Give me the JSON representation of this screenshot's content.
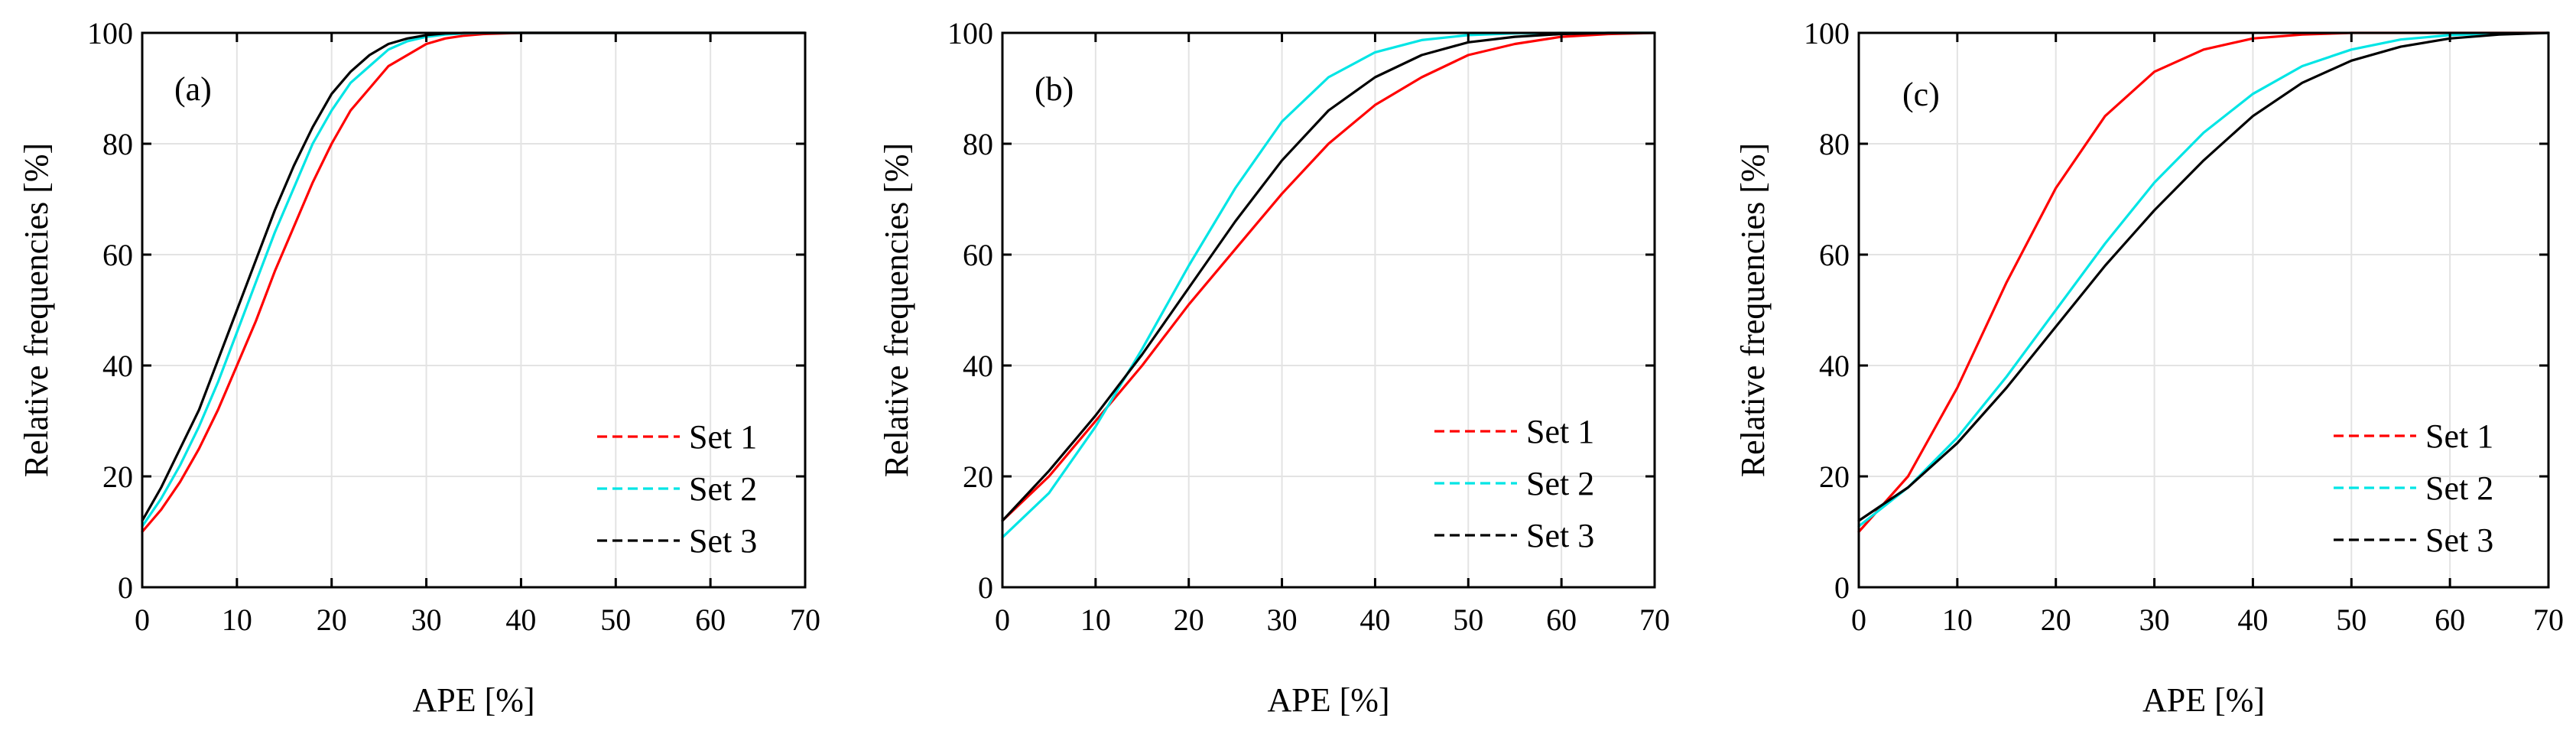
{
  "chart_data": [
    {
      "type": "line",
      "panel_label": "(a)",
      "xlabel": "APE [%]",
      "ylabel": "Relative frequencies  [%]",
      "xlim": [
        0,
        70
      ],
      "ylim": [
        0,
        100
      ],
      "xticks": [
        0,
        10,
        20,
        30,
        40,
        50,
        60,
        70
      ],
      "yticks": [
        0,
        20,
        40,
        60,
        80,
        100
      ],
      "grid": true,
      "legend_position": "bottom-right",
      "series": [
        {
          "name": "Set 1",
          "color": "#ff0000",
          "x": [
            0,
            2,
            4,
            6,
            8,
            10,
            12,
            14,
            16,
            18,
            20,
            22,
            24,
            26,
            28,
            30,
            32,
            34,
            36,
            40,
            45,
            50,
            60,
            70
          ],
          "y": [
            10,
            14,
            19,
            25,
            32,
            40,
            48,
            57,
            65,
            73,
            80,
            86,
            90,
            94,
            96,
            98,
            99,
            99.5,
            99.8,
            100,
            100,
            100,
            100,
            100
          ]
        },
        {
          "name": "Set 2",
          "color": "#00e5e5",
          "x": [
            0,
            2,
            4,
            6,
            8,
            10,
            12,
            14,
            16,
            18,
            20,
            22,
            24,
            26,
            28,
            30,
            32,
            34,
            36,
            40,
            45,
            50,
            60,
            70
          ],
          "y": [
            11,
            16,
            22,
            29,
            37,
            46,
            55,
            64,
            72,
            80,
            86,
            91,
            94,
            97,
            98.5,
            99.3,
            99.7,
            99.9,
            100,
            100,
            100,
            100,
            100,
            100
          ]
        },
        {
          "name": "Set 3",
          "color": "#000000",
          "x": [
            0,
            2,
            4,
            6,
            8,
            10,
            12,
            14,
            16,
            18,
            20,
            22,
            24,
            26,
            28,
            30,
            32,
            34,
            36,
            40,
            45,
            50,
            60,
            70
          ],
          "y": [
            12,
            18,
            25,
            32,
            41,
            50,
            59,
            68,
            76,
            83,
            89,
            93,
            96,
            98,
            99,
            99.6,
            99.9,
            100,
            100,
            100,
            100,
            100,
            100,
            100
          ]
        }
      ]
    },
    {
      "type": "line",
      "panel_label": "(b)",
      "xlabel": "APE [%]",
      "ylabel": "Relative frequencies  [%]",
      "xlim": [
        0,
        70
      ],
      "ylim": [
        0,
        100
      ],
      "xticks": [
        0,
        10,
        20,
        30,
        40,
        50,
        60,
        70
      ],
      "yticks": [
        0,
        20,
        40,
        60,
        80,
        100
      ],
      "grid": true,
      "legend_position": "bottom-right",
      "series": [
        {
          "name": "Set 1",
          "color": "#ff0000",
          "x": [
            0,
            5,
            10,
            15,
            20,
            25,
            30,
            35,
            40,
            45,
            50,
            55,
            60,
            65,
            70
          ],
          "y": [
            12,
            20,
            30,
            40,
            51,
            61,
            71,
            80,
            87,
            92,
            96,
            98,
            99.3,
            99.8,
            100
          ]
        },
        {
          "name": "Set 2",
          "color": "#00e5e5",
          "x": [
            0,
            5,
            10,
            15,
            20,
            25,
            30,
            35,
            40,
            45,
            50,
            55,
            60,
            65,
            70
          ],
          "y": [
            9,
            17,
            29,
            43,
            58,
            72,
            84,
            92,
            96.5,
            98.7,
            99.6,
            99.9,
            100,
            100,
            100
          ]
        },
        {
          "name": "Set 3",
          "color": "#000000",
          "x": [
            0,
            5,
            10,
            15,
            20,
            25,
            30,
            35,
            40,
            45,
            50,
            55,
            60,
            65,
            70
          ],
          "y": [
            12,
            21,
            31,
            42,
            54,
            66,
            77,
            86,
            92,
            96,
            98.3,
            99.3,
            99.8,
            100,
            100
          ]
        }
      ]
    },
    {
      "type": "line",
      "panel_label": "(c)",
      "xlabel": "APE [%]",
      "ylabel": "Relative frequencies  [%]",
      "xlim": [
        0,
        70
      ],
      "ylim": [
        0,
        100
      ],
      "xticks": [
        0,
        10,
        20,
        30,
        40,
        50,
        60,
        70
      ],
      "yticks": [
        0,
        20,
        40,
        60,
        80,
        100
      ],
      "grid": true,
      "legend_position": "bottom-right",
      "series": [
        {
          "name": "Set 1",
          "color": "#ff0000",
          "x": [
            0,
            5,
            10,
            15,
            20,
            25,
            30,
            35,
            40,
            45,
            50,
            55,
            60,
            65,
            70
          ],
          "y": [
            10,
            20,
            36,
            55,
            72,
            85,
            93,
            97,
            99,
            99.7,
            100,
            100,
            100,
            100,
            100
          ]
        },
        {
          "name": "Set 2",
          "color": "#00e5e5",
          "x": [
            0,
            5,
            10,
            15,
            20,
            25,
            30,
            35,
            40,
            45,
            50,
            55,
            60,
            65,
            70
          ],
          "y": [
            11,
            18,
            27,
            38,
            50,
            62,
            73,
            82,
            89,
            94,
            97,
            98.8,
            99.6,
            99.9,
            100
          ]
        },
        {
          "name": "Set 3",
          "color": "#000000",
          "x": [
            0,
            5,
            10,
            15,
            20,
            25,
            30,
            35,
            40,
            45,
            50,
            55,
            60,
            65,
            70
          ],
          "y": [
            12,
            18,
            26,
            36,
            47,
            58,
            68,
            77,
            85,
            91,
            95,
            97.5,
            99,
            99.7,
            100
          ]
        }
      ]
    }
  ]
}
